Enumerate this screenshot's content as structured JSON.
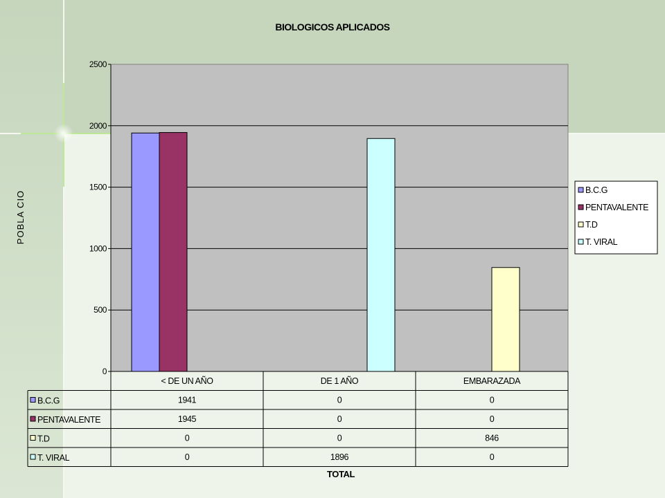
{
  "colors": {
    "slide_bg_dark": "#c5d6bd",
    "slide_bg_light": "#eef4ea",
    "plot_area": "#c0c0c0",
    "b_c_g": "#9999ff",
    "pentavalente": "#993366",
    "t_d": "#ffffcc",
    "t_viral": "#ccffff"
  },
  "chart_data": {
    "type": "bar",
    "title": "BIOLOGICOS APLICADOS",
    "ylabel": "POBLA CIO",
    "xlabel": "TOTAL",
    "ylim": [
      0,
      2500
    ],
    "yticks": [
      0,
      500,
      1000,
      1500,
      2000,
      2500
    ],
    "ytick_labels": [
      "0",
      "500",
      "1000",
      "1500",
      "2000",
      "2500"
    ],
    "grid": true,
    "legend_position": "right",
    "categories": [
      "< DE UN AÑO",
      "DE 1 AÑO",
      "EMBARAZADA"
    ],
    "series": [
      {
        "name": "B.C.G",
        "color": "#9999ff",
        "values": [
          1941,
          0,
          0
        ],
        "labels": [
          "1941",
          "0",
          "0"
        ]
      },
      {
        "name": "PENTAVALENTE",
        "color": "#993366",
        "values": [
          1945,
          0,
          0
        ],
        "labels": [
          "1945",
          "0",
          "0"
        ]
      },
      {
        "name": "T.D",
        "color": "#ffffcc",
        "values": [
          0,
          0,
          846
        ],
        "labels": [
          "0",
          "0",
          "846"
        ]
      },
      {
        "name": "T. VIRAL",
        "color": "#ccffff",
        "values": [
          0,
          1896,
          0
        ],
        "labels": [
          "0",
          "1896",
          "0"
        ]
      }
    ]
  }
}
